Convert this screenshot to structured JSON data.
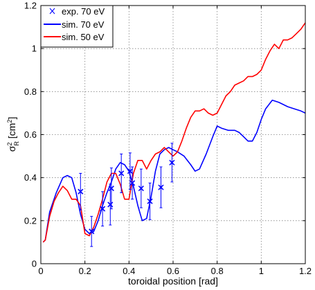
{
  "chart_data": {
    "type": "line",
    "xlabel": "toroidal position [rad]",
    "ylabel": "σ_R^2 [cm^2]",
    "xlim": [
      0,
      1.2
    ],
    "ylim": [
      0,
      1.2
    ],
    "x_ticks": [
      "0",
      "0.2",
      "0.4",
      "0.6",
      "0.8",
      "1",
      "1.2"
    ],
    "y_ticks": [
      "0",
      "0.2",
      "0.4",
      "0.6",
      "0.8",
      "1",
      "1.2"
    ],
    "grid": true,
    "legend_position": "top-left",
    "legend": [
      "exp. 70 eV",
      "sim. 70 eV",
      "sim. 50 eV"
    ],
    "colors": {
      "blue": "#0000ff",
      "red": "#ff0000",
      "grid": "#808080"
    },
    "series": [
      {
        "name": "exp. 70 eV",
        "kind": "scatter-errorbar",
        "marker": "x",
        "points": [
          {
            "x": 0.18,
            "y": 0.335,
            "err": 0.085
          },
          {
            "x": 0.23,
            "y": 0.15,
            "err": 0.07
          },
          {
            "x": 0.28,
            "y": 0.255,
            "err": 0.08
          },
          {
            "x": 0.315,
            "y": 0.275,
            "err": 0.095
          },
          {
            "x": 0.32,
            "y": 0.35,
            "err": 0.095
          },
          {
            "x": 0.365,
            "y": 0.42,
            "err": 0.09
          },
          {
            "x": 0.405,
            "y": 0.43,
            "err": 0.085
          },
          {
            "x": 0.415,
            "y": 0.375,
            "err": 0.075
          },
          {
            "x": 0.455,
            "y": 0.35,
            "err": 0.09
          },
          {
            "x": 0.495,
            "y": 0.29,
            "err": 0.085
          },
          {
            "x": 0.545,
            "y": 0.355,
            "err": 0.095
          },
          {
            "x": 0.595,
            "y": 0.47,
            "err": 0.09
          }
        ]
      },
      {
        "name": "sim. 70 eV",
        "kind": "line",
        "x": [
          0.01,
          0.02,
          0.04,
          0.07,
          0.1,
          0.12,
          0.14,
          0.16,
          0.18,
          0.2,
          0.22,
          0.24,
          0.26,
          0.28,
          0.3,
          0.32,
          0.34,
          0.36,
          0.38,
          0.4,
          0.42,
          0.44,
          0.46,
          0.48,
          0.5,
          0.52,
          0.54,
          0.56,
          0.58,
          0.6,
          0.62,
          0.65,
          0.68,
          0.7,
          0.72,
          0.75,
          0.78,
          0.8,
          0.82,
          0.85,
          0.88,
          0.9,
          0.92,
          0.94,
          0.96,
          0.98,
          1.0,
          1.02,
          1.05,
          1.08,
          1.1,
          1.12,
          1.15,
          1.18,
          1.2
        ],
        "y": [
          0.1,
          0.11,
          0.24,
          0.33,
          0.4,
          0.41,
          0.4,
          0.33,
          0.23,
          0.16,
          0.14,
          0.15,
          0.2,
          0.27,
          0.33,
          0.38,
          0.44,
          0.47,
          0.46,
          0.43,
          0.36,
          0.27,
          0.2,
          0.21,
          0.31,
          0.43,
          0.51,
          0.53,
          0.54,
          0.53,
          0.52,
          0.5,
          0.46,
          0.43,
          0.44,
          0.51,
          0.59,
          0.64,
          0.63,
          0.62,
          0.62,
          0.61,
          0.59,
          0.57,
          0.57,
          0.61,
          0.67,
          0.72,
          0.76,
          0.75,
          0.74,
          0.73,
          0.72,
          0.71,
          0.7
        ]
      },
      {
        "name": "sim. 50 eV",
        "kind": "line",
        "x": [
          0.01,
          0.02,
          0.04,
          0.06,
          0.08,
          0.1,
          0.12,
          0.14,
          0.16,
          0.18,
          0.2,
          0.22,
          0.24,
          0.26,
          0.28,
          0.3,
          0.32,
          0.34,
          0.36,
          0.38,
          0.4,
          0.42,
          0.44,
          0.46,
          0.48,
          0.5,
          0.52,
          0.54,
          0.56,
          0.58,
          0.6,
          0.62,
          0.64,
          0.66,
          0.68,
          0.7,
          0.72,
          0.74,
          0.76,
          0.78,
          0.8,
          0.82,
          0.84,
          0.86,
          0.88,
          0.9,
          0.92,
          0.94,
          0.96,
          0.98,
          1.0,
          1.02,
          1.04,
          1.06,
          1.08,
          1.1,
          1.12,
          1.14,
          1.16,
          1.18,
          1.2
        ],
        "y": [
          0.1,
          0.11,
          0.22,
          0.29,
          0.33,
          0.36,
          0.34,
          0.3,
          0.3,
          0.27,
          0.14,
          0.13,
          0.17,
          0.23,
          0.3,
          0.38,
          0.42,
          0.42,
          0.37,
          0.3,
          0.3,
          0.42,
          0.48,
          0.48,
          0.44,
          0.48,
          0.51,
          0.52,
          0.54,
          0.52,
          0.5,
          0.52,
          0.57,
          0.63,
          0.68,
          0.71,
          0.71,
          0.72,
          0.7,
          0.69,
          0.7,
          0.74,
          0.78,
          0.8,
          0.83,
          0.84,
          0.85,
          0.87,
          0.87,
          0.88,
          0.9,
          0.95,
          0.99,
          1.02,
          1.0,
          1.04,
          1.04,
          1.05,
          1.07,
          1.09,
          1.12
        ]
      }
    ]
  }
}
